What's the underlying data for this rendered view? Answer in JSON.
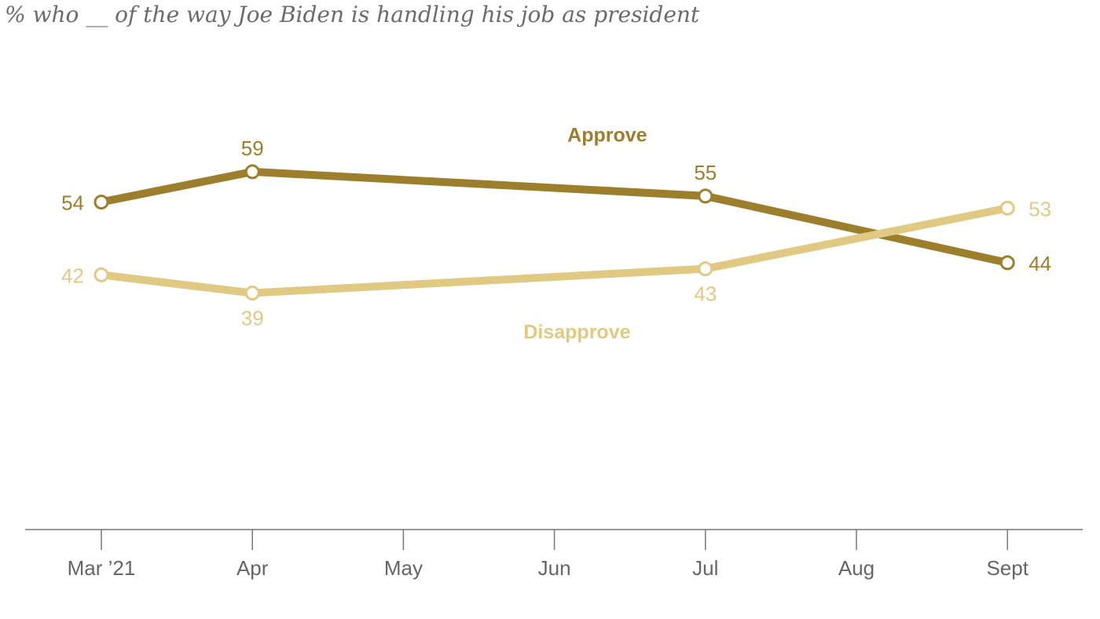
{
  "chart_data": {
    "type": "line",
    "title": "% who __ of the way Joe Biden is handling his job as president",
    "xlabel": "",
    "ylabel": "",
    "categories": [
      "Mar ’21",
      "Apr",
      "May",
      "Jun",
      "Jul",
      "Aug",
      "Sept"
    ],
    "ylim": [
      0,
      70
    ],
    "grid": false,
    "series": [
      {
        "name": "Approve",
        "color": "#9c7f2c",
        "label_anchor": [
          3.35,
          64
        ],
        "points": [
          {
            "x": 0,
            "y": 54,
            "label": "54",
            "label_pos": "left"
          },
          {
            "x": 1,
            "y": 59,
            "label": "59",
            "label_pos": "above"
          },
          {
            "x": 4,
            "y": 55,
            "label": "55",
            "label_pos": "above"
          },
          {
            "x": 6,
            "y": 44,
            "label": "44",
            "label_pos": "right"
          }
        ]
      },
      {
        "name": "Disapprove",
        "color": "#e0c983",
        "label_anchor": [
          3.15,
          31.5
        ],
        "points": [
          {
            "x": 0,
            "y": 42,
            "label": "42",
            "label_pos": "left"
          },
          {
            "x": 1,
            "y": 39,
            "label": "39",
            "label_pos": "below"
          },
          {
            "x": 4,
            "y": 43,
            "label": "43",
            "label_pos": "below"
          },
          {
            "x": 6,
            "y": 53,
            "label": "53",
            "label_pos": "right"
          }
        ]
      }
    ]
  }
}
